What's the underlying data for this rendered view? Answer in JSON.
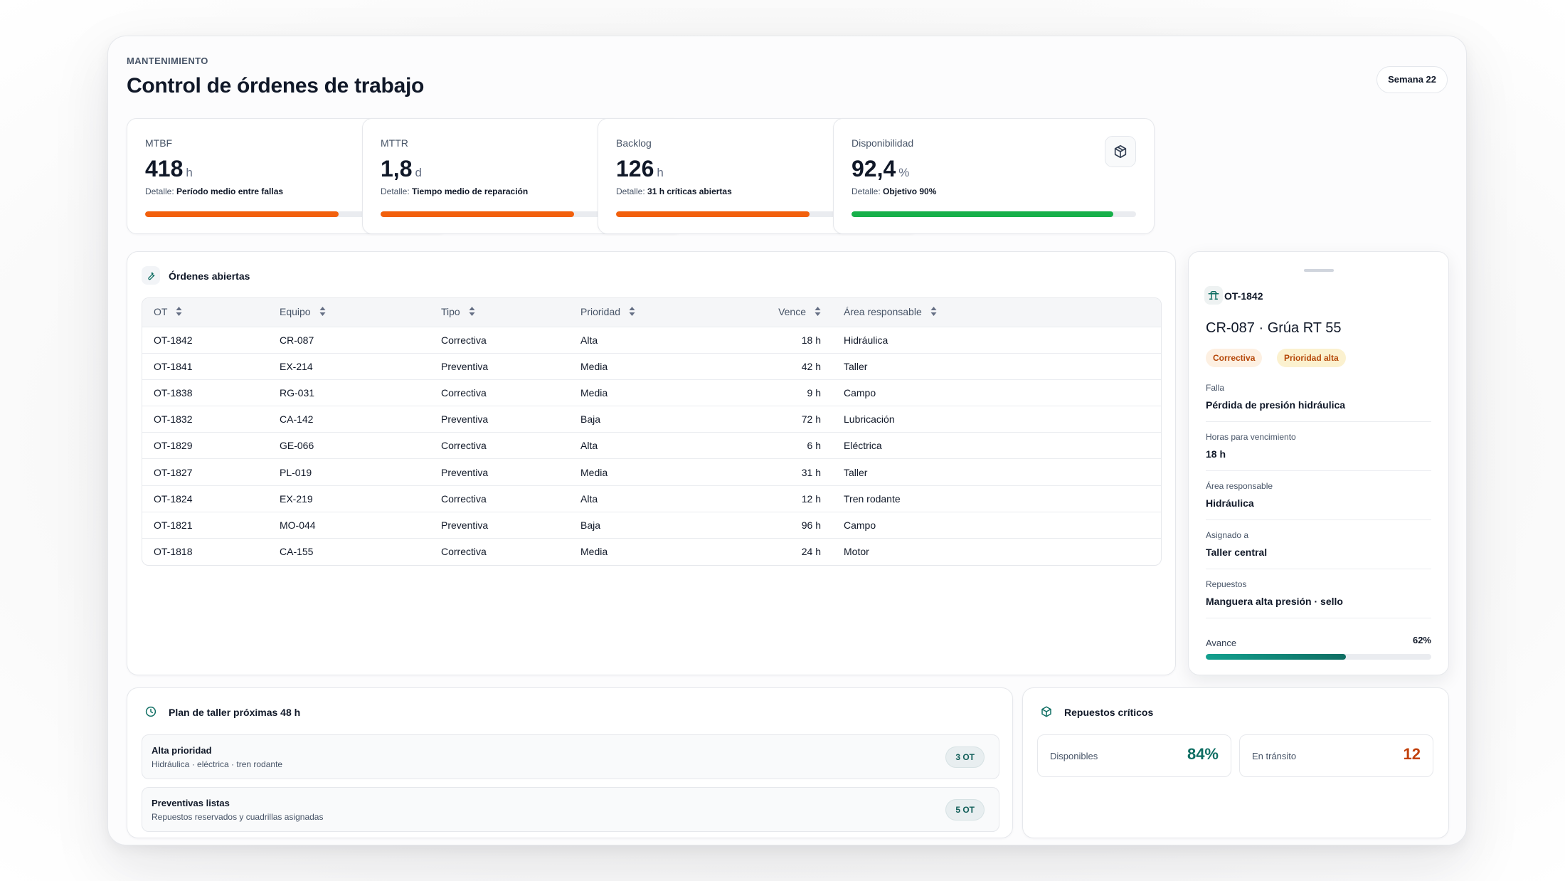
{
  "header": {
    "eyebrow": "MANTENIMIENTO",
    "title": "Control de órdenes de trabajo",
    "week_label": "Semana 22"
  },
  "kpis": [
    {
      "label": "MTBF",
      "value": "418",
      "unit": "h",
      "detail_prefix": "Detalle:",
      "detail": "Período medio entre fallas",
      "progress": 0.68,
      "color": "#f2600c",
      "icon": "gauge-icon"
    },
    {
      "label": "MTTR",
      "value": "1,8",
      "unit": "d",
      "detail_prefix": "Detalle:",
      "detail": "Tiempo medio de reparación",
      "progress": 0.68,
      "color": "#f2600c",
      "icon": "clock-icon"
    },
    {
      "label": "Backlog",
      "value": "126",
      "unit": "h",
      "detail_prefix": "Detalle:",
      "detail": "31 h críticas abiertas",
      "progress": 0.68,
      "color": "#f2600c",
      "icon": "clipboard-icon"
    },
    {
      "label": "Disponibilidad",
      "value": "92,4",
      "unit": "%",
      "detail_prefix": "Detalle:",
      "detail": "Objetivo 90%",
      "progress": 0.92,
      "color": "#17b04a",
      "icon": "package-icon"
    }
  ],
  "orders": {
    "title": "Órdenes abiertas",
    "columns": [
      "OT",
      "Equipo",
      "Tipo",
      "Prioridad",
      "Vence",
      "Área responsable"
    ],
    "rows": [
      {
        "ot": "OT-1842",
        "equipo": "CR-087",
        "tipo": "Correctiva",
        "prioridad": "Alta",
        "vence": "18 h",
        "area": "Hidráulica"
      },
      {
        "ot": "OT-1841",
        "equipo": "EX-214",
        "tipo": "Preventiva",
        "prioridad": "Media",
        "vence": "42 h",
        "area": "Taller"
      },
      {
        "ot": "OT-1838",
        "equipo": "RG-031",
        "tipo": "Correctiva",
        "prioridad": "Media",
        "vence": "9 h",
        "area": "Campo"
      },
      {
        "ot": "OT-1832",
        "equipo": "CA-142",
        "tipo": "Preventiva",
        "prioridad": "Baja",
        "vence": "72 h",
        "area": "Lubricación"
      },
      {
        "ot": "OT-1829",
        "equipo": "GE-066",
        "tipo": "Correctiva",
        "prioridad": "Alta",
        "vence": "6 h",
        "area": "Eléctrica"
      },
      {
        "ot": "OT-1827",
        "equipo": "PL-019",
        "tipo": "Preventiva",
        "prioridad": "Media",
        "vence": "31 h",
        "area": "Taller"
      },
      {
        "ot": "OT-1824",
        "equipo": "EX-219",
        "tipo": "Correctiva",
        "prioridad": "Alta",
        "vence": "12 h",
        "area": "Tren rodante"
      },
      {
        "ot": "OT-1821",
        "equipo": "MO-044",
        "tipo": "Preventiva",
        "prioridad": "Baja",
        "vence": "96 h",
        "area": "Campo"
      },
      {
        "ot": "OT-1818",
        "equipo": "CA-155",
        "tipo": "Correctiva",
        "prioridad": "Media",
        "vence": "24 h",
        "area": "Motor"
      }
    ]
  },
  "detail": {
    "id": "OT-1842",
    "title": "CR-087 · Grúa RT 55",
    "tags": [
      {
        "label": "Correctiva",
        "bg": "#fdf0e2",
        "fg": "#b54708"
      },
      {
        "label": "Prioridad alta",
        "bg": "#fbf1cf",
        "fg": "#b54708"
      }
    ],
    "fields": [
      {
        "label": "Falla",
        "value": "Pérdida de presión hidráulica"
      },
      {
        "label": "Horas para vencimiento",
        "value": "18 h"
      },
      {
        "label": "Área responsable",
        "value": "Hidráulica"
      },
      {
        "label": "Asignado a",
        "value": "Taller central"
      },
      {
        "label": "Repuestos",
        "value": "Manguera alta presión · sello"
      }
    ],
    "progress_label": "Avance",
    "progress_text": "62%",
    "progress": 0.62
  },
  "plan": {
    "title": "Plan de taller próximas 48 h",
    "items": [
      {
        "name": "Alta prioridad",
        "sub": "Hidráulica · eléctrica · tren rodante",
        "badge": "3 OT"
      },
      {
        "name": "Preventivas listas",
        "sub": "Repuestos reservados y cuadrillas asignadas",
        "badge": "5 OT"
      }
    ]
  },
  "spares": {
    "title": "Repuestos críticos",
    "items": [
      {
        "label": "Disponibles",
        "value": "84%",
        "color": "#0f6e63"
      },
      {
        "label": "En tránsito",
        "value": "12",
        "color": "#c2410c"
      }
    ]
  }
}
